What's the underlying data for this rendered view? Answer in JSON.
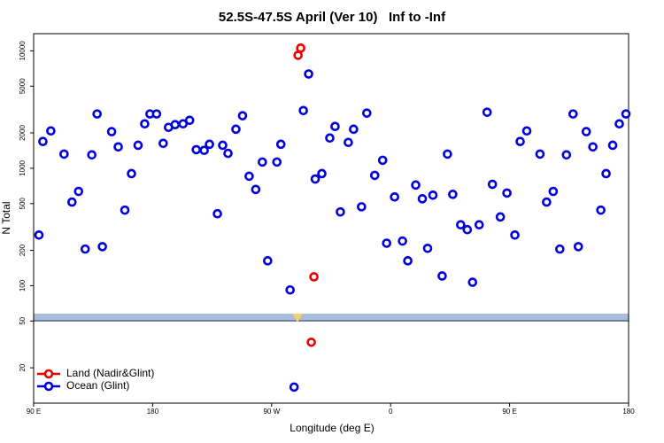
{
  "chart_data": {
    "type": "scatter",
    "title": "52.5S-47.5S April (Ver 10)   Inf to -Inf",
    "x_label": "Longitude (deg E)",
    "y_label": "N Total",
    "xlim": [
      90,
      540
    ],
    "xticks": [
      {
        "value": 90,
        "label": "90 E"
      },
      180,
      {
        "value": 270,
        "label": "90 W"
      },
      {
        "value": 360,
        "label": "0"
      },
      {
        "value": 450,
        "label": "90 E"
      },
      {
        "value": 540,
        "label": "180"
      }
    ],
    "ylim": [
      10,
      14000
    ],
    "yticks": [
      20,
      50,
      100,
      200,
      500,
      1000,
      2000,
      5000,
      10000
    ],
    "log_y": true,
    "legend": "lower left",
    "series": [
      {
        "name": "Land (Nadir&Glint)",
        "color": "#ee0000",
        "x": [
          290,
          292,
          302,
          300
        ],
        "values": [
          9160,
          10540,
          119,
          33
        ]
      },
      {
        "name": "Ocean (Glint)",
        "color": "#0000dd",
        "x": [
          94,
          97,
          103,
          113,
          119,
          124,
          129,
          134,
          138,
          142,
          149,
          154,
          159,
          164,
          169,
          174,
          178,
          183,
          188,
          192,
          197,
          203,
          208,
          213,
          219,
          223,
          229,
          233,
          237,
          243,
          248,
          253,
          258,
          263,
          267,
          274,
          277,
          284,
          294,
          298,
          303,
          308,
          314,
          318,
          322,
          328,
          332,
          338,
          342,
          348,
          354,
          357,
          363,
          369,
          373,
          379,
          384,
          388,
          392,
          399,
          403,
          407,
          413,
          418,
          422,
          427,
          433,
          437,
          443,
          448,
          454,
          458,
          463,
          473,
          478,
          483,
          488,
          493,
          498,
          502,
          508,
          513,
          519,
          523,
          528,
          533,
          538,
          287
        ],
        "values": [
          270,
          1690,
          2080,
          1320,
          515,
          635,
          205,
          1300,
          2900,
          215,
          2050,
          1520,
          440,
          900,
          1570,
          2390,
          2900,
          2900,
          1630,
          2230,
          2350,
          2390,
          2560,
          1440,
          1420,
          1600,
          410,
          1570,
          1340,
          2150,
          2800,
          855,
          660,
          1130,
          163,
          1130,
          1600,
          92,
          3100,
          6350,
          810,
          900,
          1810,
          2270,
          425,
          1660,
          2150,
          470,
          2950,
          870,
          1170,
          230,
          570,
          240,
          163,
          720,
          550,
          208,
          590,
          121,
          1320,
          600,
          330,
          300,
          107,
          330,
          3000,
          730,
          385,
          615,
          270,
          1690,
          2080,
          1320,
          515,
          635,
          205,
          1300,
          2900,
          215,
          2050,
          1520,
          440,
          900,
          1570,
          2390,
          2900,
          13.7
        ]
      }
    ]
  }
}
